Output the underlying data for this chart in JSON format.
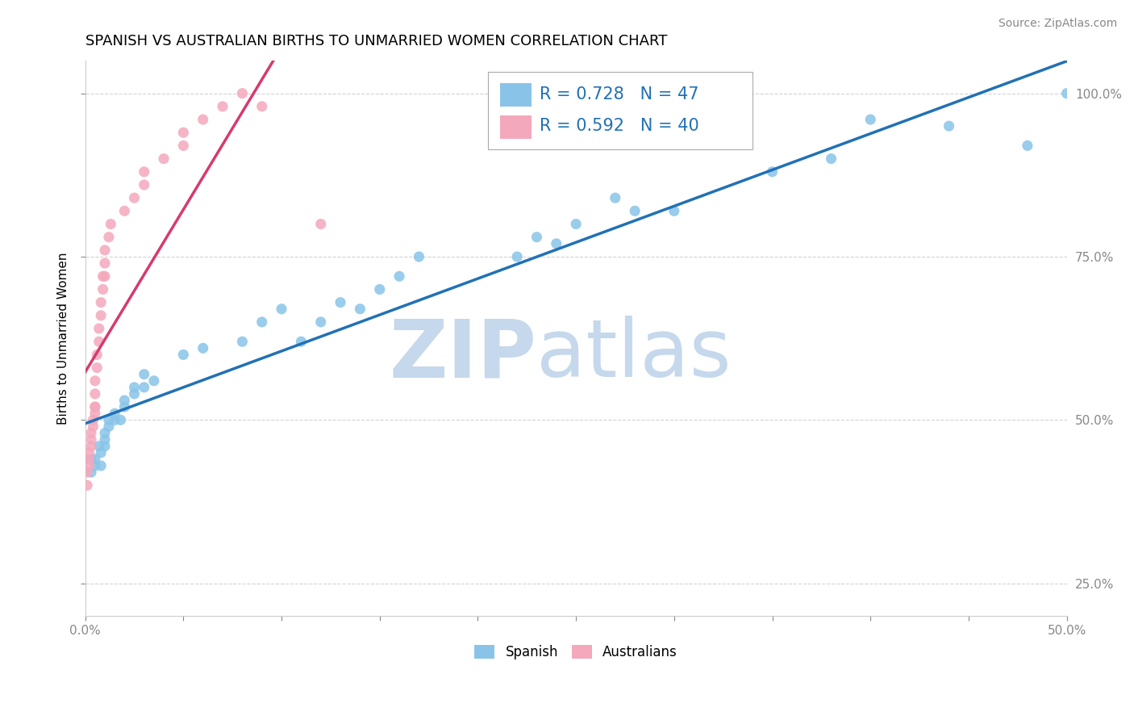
{
  "title": "SPANISH VS AUSTRALIAN BIRTHS TO UNMARRIED WOMEN CORRELATION CHART",
  "source": "Source: ZipAtlas.com",
  "ylabel": "Births to Unmarried Women",
  "xlim": [
    0.0,
    0.5
  ],
  "ylim": [
    0.2,
    1.05
  ],
  "xticks": [
    0.0,
    0.05,
    0.1,
    0.15,
    0.2,
    0.25,
    0.3,
    0.35,
    0.4,
    0.45,
    0.5
  ],
  "xticklabels": [
    "0.0%",
    "",
    "",
    "",
    "",
    "",
    "",
    "",
    "",
    "",
    "50.0%"
  ],
  "ytick_positions": [
    0.25,
    0.5,
    0.75,
    1.0
  ],
  "yticklabels": [
    "25.0%",
    "50.0%",
    "75.0%",
    "100.0%"
  ],
  "spanish_color": "#89c4e8",
  "australian_color": "#f4a8bc",
  "regression_spanish_color": "#2171b5",
  "regression_australian_color": "#d63a6e",
  "legend_R_spanish": "R = 0.728",
  "legend_N_spanish": "N = 47",
  "legend_R_australian": "R = 0.592",
  "legend_N_australian": "N = 40",
  "watermark_zip": "ZIP",
  "watermark_atlas": "atlas",
  "watermark_color_zip": "#c5d8ec",
  "watermark_color_atlas": "#c5d8ec",
  "spanish_x": [
    0.003,
    0.003,
    0.005,
    0.005,
    0.007,
    0.008,
    0.008,
    0.01,
    0.01,
    0.01,
    0.012,
    0.012,
    0.015,
    0.015,
    0.018,
    0.02,
    0.02,
    0.025,
    0.025,
    0.03,
    0.03,
    0.035,
    0.05,
    0.06,
    0.08,
    0.09,
    0.1,
    0.11,
    0.12,
    0.13,
    0.14,
    0.15,
    0.16,
    0.17,
    0.22,
    0.23,
    0.24,
    0.25,
    0.27,
    0.28,
    0.3,
    0.35,
    0.38,
    0.4,
    0.44,
    0.48,
    0.5
  ],
  "spanish_y": [
    0.42,
    0.44,
    0.43,
    0.44,
    0.46,
    0.43,
    0.45,
    0.46,
    0.47,
    0.48,
    0.49,
    0.5,
    0.51,
    0.5,
    0.5,
    0.52,
    0.53,
    0.54,
    0.55,
    0.55,
    0.57,
    0.56,
    0.6,
    0.61,
    0.62,
    0.65,
    0.67,
    0.62,
    0.65,
    0.68,
    0.67,
    0.7,
    0.72,
    0.75,
    0.75,
    0.78,
    0.77,
    0.8,
    0.84,
    0.82,
    0.82,
    0.88,
    0.9,
    0.96,
    0.95,
    0.92,
    1.0
  ],
  "australian_x": [
    0.001,
    0.001,
    0.002,
    0.002,
    0.002,
    0.003,
    0.003,
    0.003,
    0.004,
    0.004,
    0.005,
    0.005,
    0.005,
    0.005,
    0.005,
    0.006,
    0.006,
    0.007,
    0.007,
    0.008,
    0.008,
    0.009,
    0.009,
    0.01,
    0.01,
    0.01,
    0.012,
    0.013,
    0.02,
    0.025,
    0.03,
    0.03,
    0.04,
    0.05,
    0.05,
    0.06,
    0.07,
    0.08,
    0.09,
    0.12
  ],
  "australian_y": [
    0.4,
    0.42,
    0.43,
    0.44,
    0.45,
    0.46,
    0.47,
    0.48,
    0.49,
    0.5,
    0.51,
    0.52,
    0.52,
    0.54,
    0.56,
    0.58,
    0.6,
    0.62,
    0.64,
    0.66,
    0.68,
    0.7,
    0.72,
    0.72,
    0.74,
    0.76,
    0.78,
    0.8,
    0.82,
    0.84,
    0.86,
    0.88,
    0.9,
    0.92,
    0.94,
    0.96,
    0.98,
    1.0,
    0.98,
    0.8
  ],
  "title_fontsize": 13,
  "axis_label_fontsize": 11,
  "tick_fontsize": 11,
  "legend_fontsize": 15
}
